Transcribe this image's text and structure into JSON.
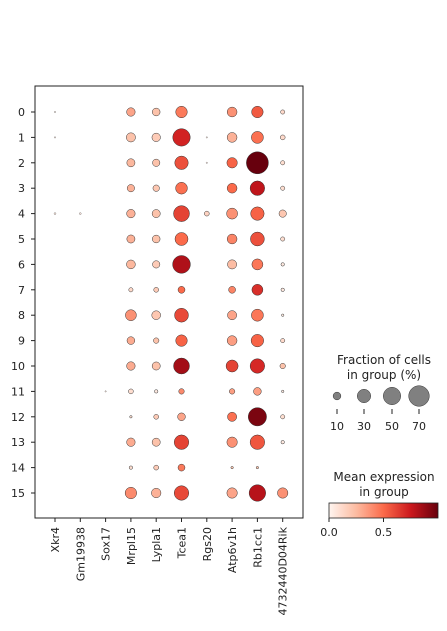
{
  "chart_data": {
    "type": "dotplot",
    "genes": [
      "Xkr4",
      "Gm19938",
      "Sox17",
      "Mrpl15",
      "Lypla1",
      "Tcea1",
      "Rgs20",
      "Atp6v1h",
      "Rb1cc1",
      "4732440D04Rik"
    ],
    "groups": [
      "0",
      "1",
      "2",
      "3",
      "4",
      "5",
      "6",
      "7",
      "8",
      "9",
      "10",
      "11",
      "12",
      "13",
      "14",
      "15"
    ],
    "fraction": [
      [
        0.3,
        0,
        0,
        12,
        10,
        22,
        0,
        16,
        22,
        3
      ],
      [
        0.3,
        0,
        0,
        14,
        12,
        50,
        0.3,
        16,
        24,
        4
      ],
      [
        0,
        0,
        0,
        11,
        9,
        30,
        0.3,
        18,
        80,
        3
      ],
      [
        0,
        0,
        0,
        9,
        7,
        23,
        0,
        16,
        35,
        3
      ],
      [
        0.6,
        0.6,
        0,
        12,
        11,
        42,
        4,
        20,
        30,
        9
      ],
      [
        0,
        0,
        0,
        11,
        10,
        28,
        0,
        16,
        32,
        3
      ],
      [
        0,
        0,
        0,
        13,
        9,
        52,
        0,
        14,
        20,
        2
      ],
      [
        0,
        0,
        0,
        3,
        4,
        8,
        0,
        8,
        20,
        2
      ],
      [
        0,
        0,
        0,
        20,
        13,
        32,
        0,
        14,
        24,
        1
      ],
      [
        0,
        0,
        0,
        10,
        5,
        22,
        0,
        16,
        26,
        3
      ],
      [
        0,
        0,
        0,
        12,
        11,
        42,
        0,
        24,
        35,
        5
      ],
      [
        0,
        0,
        0.3,
        4,
        2,
        5,
        0,
        5,
        10,
        1
      ],
      [
        0,
        0,
        0,
        1,
        4,
        10,
        0,
        14,
        55,
        3
      ],
      [
        0,
        0,
        0,
        12,
        11,
        35,
        0,
        18,
        35,
        2
      ],
      [
        0,
        0,
        0,
        2,
        4,
        8,
        0,
        1,
        1,
        0
      ],
      [
        0,
        0,
        0,
        22,
        15,
        35,
        0,
        18,
        45,
        18
      ]
    ],
    "expression": [
      [
        0.05,
        0,
        0,
        0.32,
        0.22,
        0.45,
        0,
        0.38,
        0.55,
        0.12
      ],
      [
        0.05,
        0,
        0,
        0.22,
        0.18,
        0.72,
        0.05,
        0.28,
        0.48,
        0.12
      ],
      [
        0,
        0,
        0,
        0.26,
        0.22,
        0.58,
        0.05,
        0.52,
        1.0,
        0.1
      ],
      [
        0,
        0,
        0,
        0.28,
        0.2,
        0.48,
        0,
        0.5,
        0.78,
        0.1
      ],
      [
        0.05,
        0.05,
        0,
        0.28,
        0.22,
        0.62,
        0.15,
        0.38,
        0.52,
        0.2
      ],
      [
        0,
        0,
        0,
        0.28,
        0.22,
        0.5,
        0,
        0.42,
        0.58,
        0.1
      ],
      [
        0,
        0,
        0,
        0.26,
        0.18,
        0.82,
        0,
        0.24,
        0.46,
        0.05
      ],
      [
        0,
        0,
        0,
        0.12,
        0.18,
        0.5,
        0,
        0.42,
        0.68,
        0.05
      ],
      [
        0,
        0,
        0,
        0.38,
        0.2,
        0.6,
        0,
        0.32,
        0.46,
        0.05
      ],
      [
        0,
        0,
        0,
        0.3,
        0.22,
        0.52,
        0,
        0.34,
        0.52,
        0.12
      ],
      [
        0,
        0,
        0,
        0.3,
        0.22,
        0.85,
        0,
        0.62,
        0.7,
        0.22
      ],
      [
        0,
        0,
        0.05,
        0.1,
        0.05,
        0.4,
        0,
        0.34,
        0.34,
        0.05
      ],
      [
        0,
        0,
        0,
        0.1,
        0.18,
        0.32,
        0,
        0.48,
        0.95,
        0.1
      ],
      [
        0,
        0,
        0,
        0.3,
        0.22,
        0.62,
        0,
        0.38,
        0.56,
        0.05
      ],
      [
        0,
        0,
        0,
        0.1,
        0.18,
        0.45,
        0,
        0.2,
        0.2,
        0
      ],
      [
        0,
        0,
        0,
        0.4,
        0.28,
        0.6,
        0,
        0.32,
        0.8,
        0.38
      ]
    ],
    "size_legend": {
      "title_line1": "Fraction of cells",
      "title_line2": "in group (%)",
      "values": [
        10,
        30,
        50,
        70
      ],
      "labels": [
        "10",
        "30",
        "50",
        "70"
      ]
    },
    "color_legend": {
      "title_line1": "Mean expression",
      "title_line2": "in group",
      "range": [
        0,
        1.0
      ],
      "ticks": [
        0.0,
        0.5
      ],
      "tick_labels": [
        "0.0",
        "0.5"
      ],
      "colormap": "Reds",
      "colors": [
        "#fff5f0",
        "#fcbba1",
        "#fb6a4a",
        "#cb181d",
        "#67000d"
      ]
    }
  }
}
